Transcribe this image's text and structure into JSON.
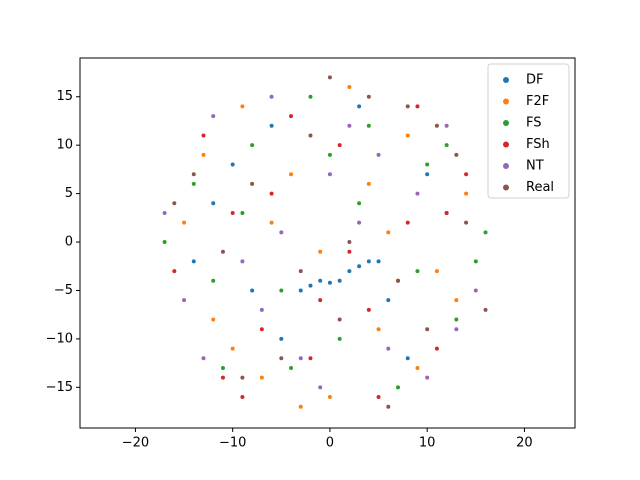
{
  "chart_data": {
    "type": "scatter",
    "legend": "upper right",
    "xlim": [
      -25.7,
      25.2
    ],
    "ylim": [
      -19.2,
      19.0
    ],
    "xticks": [
      {
        "value": -20,
        "label": "−20"
      },
      {
        "value": -10,
        "label": "−10"
      },
      0,
      10,
      20
    ],
    "yticks": [
      {
        "value": -15,
        "label": "−15"
      },
      {
        "value": -10,
        "label": "−10"
      },
      {
        "value": -5,
        "label": "−5"
      },
      0,
      5,
      10,
      15
    ],
    "series": [
      {
        "name": "DF",
        "color": "#1f77b4",
        "x": [
          -3,
          -2,
          -1,
          0,
          1,
          2,
          3,
          4,
          5,
          -10,
          8,
          -6,
          12,
          -14,
          3,
          -5,
          10,
          -8,
          6,
          -12
        ],
        "y": [
          -5,
          -4.5,
          -4,
          -4.2,
          -4,
          -3,
          -2.5,
          -2,
          -2,
          8,
          -12,
          12,
          3,
          -2,
          14,
          -10,
          7,
          -5,
          -6,
          4
        ]
      },
      {
        "name": "F2F",
        "color": "#ff7f0e",
        "x": [
          -15,
          -12,
          -9,
          -7,
          -4,
          -1,
          2,
          5,
          8,
          11,
          14,
          -13,
          -10,
          -6,
          0,
          4,
          9,
          13,
          -3,
          6
        ],
        "y": [
          2,
          -8,
          14,
          -14,
          7,
          -1,
          16,
          -9,
          11,
          -3,
          5,
          9,
          -11,
          2,
          -16,
          6,
          -13,
          -6,
          -17,
          1
        ]
      },
      {
        "name": "FS",
        "color": "#2ca02c",
        "x": [
          -17,
          -14,
          -11,
          -8,
          -5,
          -2,
          1,
          4,
          7,
          10,
          13,
          16,
          -12,
          -4,
          3,
          9,
          -9,
          0,
          12,
          15
        ],
        "y": [
          0,
          6,
          -13,
          10,
          -5,
          15,
          -10,
          12,
          -15,
          8,
          -8,
          1,
          -4,
          -13,
          4,
          -3,
          3,
          9,
          10,
          -2
        ]
      },
      {
        "name": "FSh",
        "color": "#d62728",
        "x": [
          -16,
          -13,
          -10,
          -7,
          -4,
          -1,
          2,
          5,
          8,
          11,
          14,
          -11,
          -6,
          1,
          7,
          12,
          -2,
          4,
          -9,
          9
        ],
        "y": [
          -3,
          11,
          3,
          -9,
          13,
          -6,
          -1,
          -16,
          2,
          -11,
          7,
          -14,
          5,
          10,
          -4,
          3,
          -12,
          -7,
          -16,
          14
        ]
      },
      {
        "name": "NT",
        "color": "#9467bd",
        "x": [
          -17,
          -15,
          -12,
          -9,
          -6,
          -3,
          0,
          3,
          6,
          9,
          12,
          15,
          -7,
          -1,
          5,
          10,
          -13,
          2,
          13,
          -5
        ],
        "y": [
          3,
          -6,
          13,
          -2,
          15,
          -12,
          7,
          2,
          -11,
          5,
          12,
          -5,
          -7,
          -15,
          9,
          -14,
          -12,
          12,
          -9,
          1
        ]
      },
      {
        "name": "Real",
        "color": "#8c564b",
        "x": [
          -14,
          -11,
          -8,
          -5,
          -2,
          1,
          4,
          7,
          10,
          13,
          16,
          -9,
          -3,
          2,
          8,
          14,
          -16,
          0,
          6,
          11
        ],
        "y": [
          7,
          -1,
          6,
          -12,
          11,
          -8,
          15,
          -4,
          -9,
          9,
          -7,
          -14,
          -3,
          0,
          14,
          2,
          4,
          17,
          -17,
          12
        ]
      }
    ]
  }
}
